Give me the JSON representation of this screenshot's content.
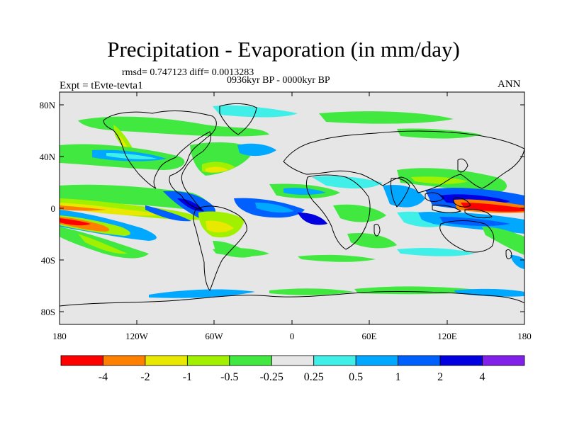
{
  "title": "Precipitation - Evaporation (in mm/day)",
  "stats": "rmsd= 0.747123 diff= 0.0013283",
  "period": "0936kyr BP - 0000kyr BP",
  "experiment": "Expt = tEvte-tevta1",
  "season": "ANN",
  "axes": {
    "y_ticks": [
      "80N",
      "40N",
      "0",
      "40S",
      "80S"
    ],
    "x_ticks": [
      "180",
      "120W",
      "60W",
      "0",
      "60E",
      "120E",
      "180"
    ]
  },
  "colorbar": {
    "colors": [
      "#ff0000",
      "#ff8000",
      "#e8e800",
      "#a0f000",
      "#40e840",
      "#e6e6e6",
      "#40f0e8",
      "#00a8ff",
      "#0060ff",
      "#0000e0",
      "#8020e8"
    ],
    "labels": [
      "-4",
      "-2",
      "-1",
      "-0.5",
      "-0.25",
      "0.25",
      "0.5",
      "1",
      "2",
      "4"
    ]
  },
  "map_colors": {
    "background": "#e6e6e6",
    "coast": "#000000"
  }
}
